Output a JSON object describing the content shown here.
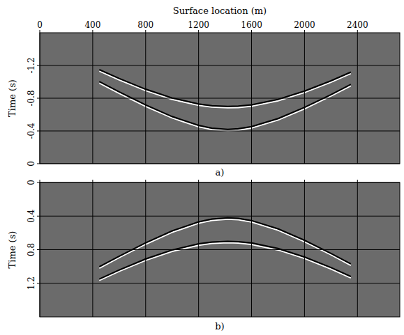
{
  "chart_data": [
    {
      "type": "line",
      "title": "a)",
      "xlabel": "Surface location (m)",
      "ylabel": "Time (s)",
      "x": [
        450,
        600,
        800,
        1000,
        1200,
        1300,
        1420,
        1500,
        1600,
        1800,
        2000,
        2200,
        2350
      ],
      "series": [
        {
          "color": "#000000",
          "values": [
            -1.003,
            -0.877,
            -0.718,
            -0.576,
            -0.468,
            -0.435,
            -0.42,
            -0.427,
            -0.453,
            -0.551,
            -0.688,
            -0.844,
            -0.969
          ]
        },
        {
          "color": "#000000",
          "values": [
            -1.149,
            -1.041,
            -0.91,
            -0.803,
            -0.73,
            -0.709,
            -0.7,
            -0.704,
            -0.72,
            -0.786,
            -0.887,
            -1.013,
            -1.119
          ]
        }
      ],
      "xlim": [
        0,
        2720
      ],
      "xticks": [
        0,
        400,
        800,
        1200,
        1600,
        2000,
        2400
      ],
      "ylim": [
        0,
        -1.6
      ],
      "yticks": [
        0,
        -0.4,
        -0.8,
        -1.2
      ],
      "grid": true
    },
    {
      "type": "line",
      "title": "b)",
      "ylabel": "Time (s)",
      "x": [
        450,
        600,
        800,
        1000,
        1200,
        1300,
        1420,
        1500,
        1600,
        1800,
        2000,
        2200,
        2350
      ],
      "series": [
        {
          "color": "#000000",
          "values": [
            1.003,
            0.877,
            0.718,
            0.576,
            0.468,
            0.435,
            0.42,
            0.427,
            0.453,
            0.551,
            0.688,
            0.844,
            0.969
          ]
        },
        {
          "color": "#000000",
          "values": [
            1.149,
            1.041,
            0.91,
            0.803,
            0.73,
            0.709,
            0.7,
            0.704,
            0.72,
            0.786,
            0.887,
            1.013,
            1.119
          ]
        }
      ],
      "xlim": [
        0,
        2720
      ],
      "xticks": [
        0,
        400,
        800,
        1200,
        1600,
        2000,
        2400
      ],
      "ylim": [
        1.6,
        0
      ],
      "yticks": [
        0,
        0.4,
        0.8,
        1.2
      ],
      "grid": true,
      "tick_labels": "y"
    }
  ]
}
